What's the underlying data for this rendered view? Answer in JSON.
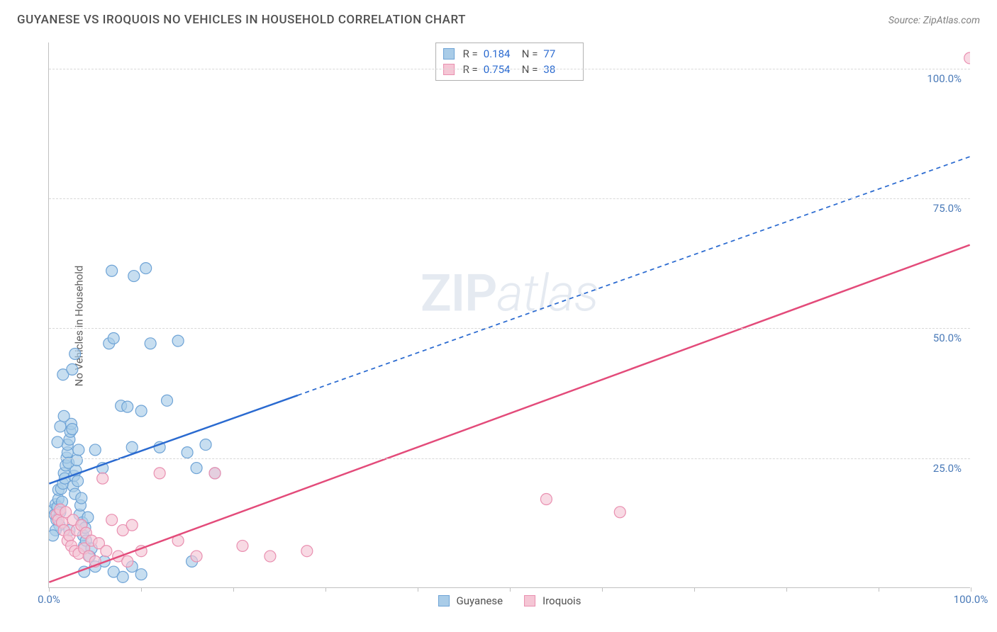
{
  "header": {
    "title": "GUYANESE VS IROQUOIS NO VEHICLES IN HOUSEHOLD CORRELATION CHART",
    "source_prefix": "Source: ",
    "source_name": "ZipAtlas.com"
  },
  "watermark": {
    "zip": "ZIP",
    "atlas": "atlas"
  },
  "chart": {
    "type": "scatter",
    "ylabel": "No Vehicles in Household",
    "background_color": "#ffffff",
    "grid_color": "#d8d8d8",
    "axis_color": "#c0c0c0",
    "tick_label_color": "#4a7ab8",
    "xlim": [
      0,
      100
    ],
    "ylim": [
      0,
      105
    ],
    "xtick_positions": [
      0,
      10,
      20,
      30,
      40,
      50,
      60,
      70,
      80,
      90,
      100
    ],
    "xtick_labels": {
      "0": "0.0%",
      "100": "100.0%"
    },
    "ytick_positions": [
      25,
      50,
      75,
      100
    ],
    "ytick_labels": {
      "25": "25.0%",
      "50": "50.0%",
      "75": "75.0%",
      "100": "100.0%"
    },
    "series": [
      {
        "name": "Guyanese",
        "color_fill": "#a9cce8",
        "color_stroke": "#6ea3d6",
        "marker_radius": 8,
        "marker_opacity": 0.65,
        "trend": {
          "color": "#2a6ad0",
          "width": 2.5,
          "solid_from_x": 0,
          "solid_to_x": 27,
          "y_at_x0": 20,
          "y_at_x100": 83,
          "dash": "6,5"
        },
        "stats": {
          "R_label": "R =",
          "R": "0.184",
          "N_label": "N =",
          "N": "77"
        },
        "data": [
          [
            0.5,
            15
          ],
          [
            0.6,
            14
          ],
          [
            0.7,
            16
          ],
          [
            0.8,
            13
          ],
          [
            0.9,
            15.5
          ],
          [
            1,
            17
          ],
          [
            1,
            18.8
          ],
          [
            1.1,
            12
          ],
          [
            1.2,
            14.5
          ],
          [
            1.3,
            19
          ],
          [
            1.4,
            16.5
          ],
          [
            1.5,
            20
          ],
          [
            1.6,
            22
          ],
          [
            1.7,
            21
          ],
          [
            1.8,
            23.5
          ],
          [
            1.9,
            25
          ],
          [
            2,
            26
          ],
          [
            2,
            27.5
          ],
          [
            2.1,
            24
          ],
          [
            2.2,
            28.5
          ],
          [
            2.3,
            30
          ],
          [
            2.4,
            31.5
          ],
          [
            2.5,
            30.5
          ],
          [
            2.6,
            19.5
          ],
          [
            2.7,
            21.5
          ],
          [
            2.8,
            18
          ],
          [
            2.9,
            22.5
          ],
          [
            3,
            24.5
          ],
          [
            3.1,
            20.5
          ],
          [
            3.2,
            26.5
          ],
          [
            3.3,
            14
          ],
          [
            3.4,
            15.8
          ],
          [
            3.5,
            17.2
          ],
          [
            3.6,
            12.5
          ],
          [
            3.7,
            10
          ],
          [
            3.8,
            8
          ],
          [
            3.9,
            11.5
          ],
          [
            4,
            9
          ],
          [
            4.2,
            13.5
          ],
          [
            4.4,
            6
          ],
          [
            4.6,
            7.5
          ],
          [
            5,
            26.5
          ],
          [
            5.8,
            23
          ],
          [
            6.5,
            47
          ],
          [
            6.8,
            61
          ],
          [
            7,
            48
          ],
          [
            7.8,
            35
          ],
          [
            8.5,
            34.8
          ],
          [
            9,
            27
          ],
          [
            9.2,
            60
          ],
          [
            10,
            34
          ],
          [
            10.5,
            61.5
          ],
          [
            11,
            47
          ],
          [
            12,
            27
          ],
          [
            12.8,
            36
          ],
          [
            14,
            47.5
          ],
          [
            15,
            26
          ],
          [
            15.5,
            5
          ],
          [
            16,
            23
          ],
          [
            17,
            27.5
          ],
          [
            18,
            22
          ],
          [
            1.5,
            41
          ],
          [
            2.5,
            42
          ],
          [
            2.8,
            45
          ],
          [
            1.2,
            31
          ],
          [
            0.9,
            28
          ],
          [
            1.6,
            33
          ],
          [
            0.7,
            11
          ],
          [
            0.4,
            10
          ],
          [
            2.2,
            11
          ],
          [
            3.8,
            3
          ],
          [
            5,
            4
          ],
          [
            6,
            5
          ],
          [
            7,
            3
          ],
          [
            8,
            2
          ],
          [
            9,
            4
          ],
          [
            10,
            2.5
          ]
        ]
      },
      {
        "name": "Iroquois",
        "color_fill": "#f5c6d5",
        "color_stroke": "#e98fb0",
        "marker_radius": 8,
        "marker_opacity": 0.65,
        "trend": {
          "color": "#e34b7a",
          "width": 2.5,
          "solid_from_x": 0,
          "solid_to_x": 100,
          "y_at_x0": 1,
          "y_at_x100": 66,
          "dash": "none"
        },
        "stats": {
          "R_label": "R =",
          "R": "0.754",
          "N_label": "N =",
          "N": "38"
        },
        "data": [
          [
            0.8,
            14
          ],
          [
            1,
            13
          ],
          [
            1.2,
            15
          ],
          [
            1.4,
            12.5
          ],
          [
            1.6,
            11
          ],
          [
            1.8,
            14.5
          ],
          [
            2,
            9
          ],
          [
            2.2,
            10
          ],
          [
            2.4,
            8
          ],
          [
            2.6,
            13
          ],
          [
            2.8,
            7
          ],
          [
            3,
            11
          ],
          [
            3.2,
            6.5
          ],
          [
            3.5,
            12
          ],
          [
            3.8,
            7.5
          ],
          [
            4,
            10.5
          ],
          [
            4.3,
            6
          ],
          [
            4.6,
            9
          ],
          [
            5,
            5
          ],
          [
            5.4,
            8.5
          ],
          [
            5.8,
            21
          ],
          [
            6.2,
            7
          ],
          [
            6.8,
            13
          ],
          [
            7.5,
            6
          ],
          [
            8,
            11
          ],
          [
            8.5,
            5
          ],
          [
            9,
            12
          ],
          [
            10,
            7
          ],
          [
            12,
            22
          ],
          [
            14,
            9
          ],
          [
            16,
            6
          ],
          [
            18,
            22
          ],
          [
            21,
            8
          ],
          [
            24,
            6
          ],
          [
            28,
            7
          ],
          [
            54,
            17
          ],
          [
            62,
            14.5
          ],
          [
            100,
            102
          ]
        ]
      }
    ]
  }
}
